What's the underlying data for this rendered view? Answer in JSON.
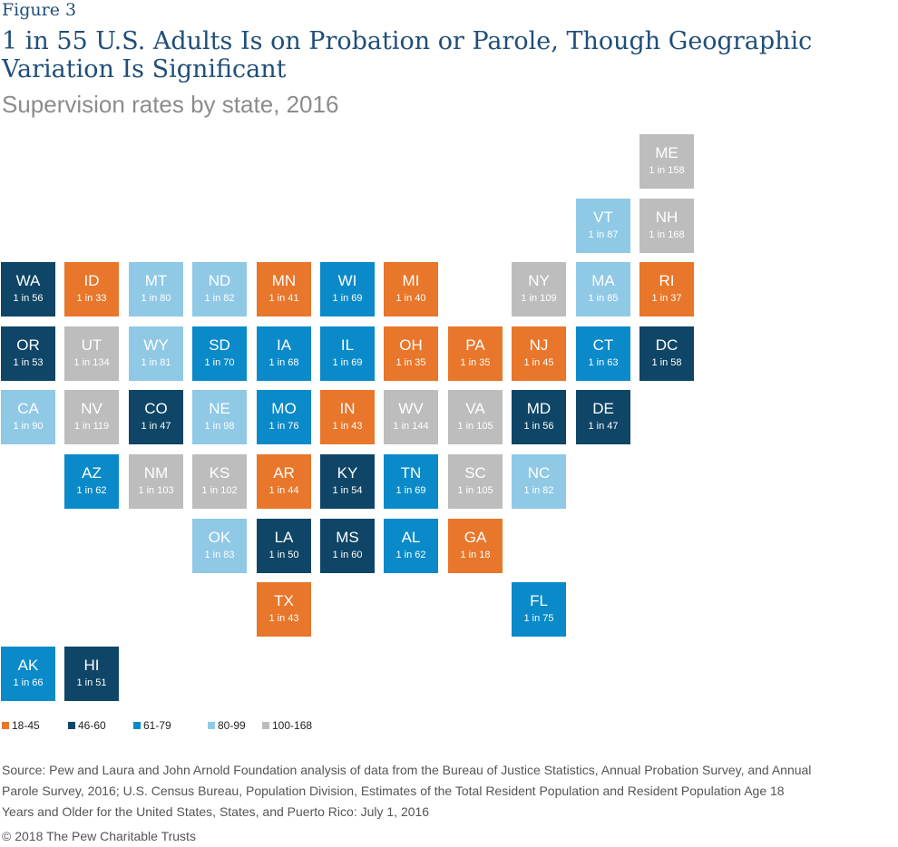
{
  "header": {
    "figure_label": "Figure 3",
    "title": "1 in 55 U.S. Adults Is on Probation or Parole, Though Geographic Variation Is Significant",
    "subtitle": "Supervision rates by state, 2016"
  },
  "colors": {
    "18-45": "#e8762b",
    "46-60": "#0f4566",
    "61-79": "#0a8ac9",
    "80-99": "#8fc9e6",
    "100-168": "#bdbdbd"
  },
  "chart_data": {
    "type": "tile-map",
    "value_label_prefix": "1 in ",
    "states": [
      {
        "abbr": "ME",
        "value": 158,
        "col": 10,
        "row": 0
      },
      {
        "abbr": "VT",
        "value": 87,
        "col": 9,
        "row": 1
      },
      {
        "abbr": "NH",
        "value": 168,
        "col": 10,
        "row": 1
      },
      {
        "abbr": "WA",
        "value": 56,
        "col": 0,
        "row": 2
      },
      {
        "abbr": "ID",
        "value": 33,
        "col": 1,
        "row": 2
      },
      {
        "abbr": "MT",
        "value": 80,
        "col": 2,
        "row": 2
      },
      {
        "abbr": "ND",
        "value": 82,
        "col": 3,
        "row": 2
      },
      {
        "abbr": "MN",
        "value": 41,
        "col": 4,
        "row": 2
      },
      {
        "abbr": "WI",
        "value": 69,
        "col": 5,
        "row": 2
      },
      {
        "abbr": "MI",
        "value": 40,
        "col": 6,
        "row": 2
      },
      {
        "abbr": "NY",
        "value": 109,
        "col": 8,
        "row": 2
      },
      {
        "abbr": "MA",
        "value": 85,
        "col": 9,
        "row": 2
      },
      {
        "abbr": "RI",
        "value": 37,
        "col": 10,
        "row": 2
      },
      {
        "abbr": "OR",
        "value": 53,
        "col": 0,
        "row": 3
      },
      {
        "abbr": "UT",
        "value": 134,
        "col": 1,
        "row": 3
      },
      {
        "abbr": "WY",
        "value": 81,
        "col": 2,
        "row": 3
      },
      {
        "abbr": "SD",
        "value": 70,
        "col": 3,
        "row": 3
      },
      {
        "abbr": "IA",
        "value": 68,
        "col": 4,
        "row": 3
      },
      {
        "abbr": "IL",
        "value": 69,
        "col": 5,
        "row": 3
      },
      {
        "abbr": "OH",
        "value": 35,
        "col": 6,
        "row": 3
      },
      {
        "abbr": "PA",
        "value": 35,
        "col": 7,
        "row": 3
      },
      {
        "abbr": "NJ",
        "value": 45,
        "col": 8,
        "row": 3
      },
      {
        "abbr": "CT",
        "value": 63,
        "col": 9,
        "row": 3
      },
      {
        "abbr": "DC",
        "value": 58,
        "col": 10,
        "row": 3
      },
      {
        "abbr": "CA",
        "value": 90,
        "col": 0,
        "row": 4
      },
      {
        "abbr": "NV",
        "value": 119,
        "col": 1,
        "row": 4
      },
      {
        "abbr": "CO",
        "value": 47,
        "col": 2,
        "row": 4
      },
      {
        "abbr": "NE",
        "value": 98,
        "col": 3,
        "row": 4
      },
      {
        "abbr": "MO",
        "value": 76,
        "col": 4,
        "row": 4
      },
      {
        "abbr": "IN",
        "value": 43,
        "col": 5,
        "row": 4
      },
      {
        "abbr": "WV",
        "value": 144,
        "col": 6,
        "row": 4
      },
      {
        "abbr": "VA",
        "value": 105,
        "col": 7,
        "row": 4
      },
      {
        "abbr": "MD",
        "value": 56,
        "col": 8,
        "row": 4
      },
      {
        "abbr": "DE",
        "value": 47,
        "col": 9,
        "row": 4
      },
      {
        "abbr": "AZ",
        "value": 62,
        "col": 1,
        "row": 5
      },
      {
        "abbr": "NM",
        "value": 103,
        "col": 2,
        "row": 5
      },
      {
        "abbr": "KS",
        "value": 102,
        "col": 3,
        "row": 5
      },
      {
        "abbr": "AR",
        "value": 44,
        "col": 4,
        "row": 5
      },
      {
        "abbr": "KY",
        "value": 54,
        "col": 5,
        "row": 5
      },
      {
        "abbr": "TN",
        "value": 69,
        "col": 6,
        "row": 5
      },
      {
        "abbr": "SC",
        "value": 105,
        "col": 7,
        "row": 5
      },
      {
        "abbr": "NC",
        "value": 82,
        "col": 8,
        "row": 5
      },
      {
        "abbr": "OK",
        "value": 83,
        "col": 3,
        "row": 6
      },
      {
        "abbr": "LA",
        "value": 50,
        "col": 4,
        "row": 6
      },
      {
        "abbr": "MS",
        "value": 60,
        "col": 5,
        "row": 6
      },
      {
        "abbr": "AL",
        "value": 62,
        "col": 6,
        "row": 6
      },
      {
        "abbr": "GA",
        "value": 18,
        "col": 7,
        "row": 6
      },
      {
        "abbr": "TX",
        "value": 43,
        "col": 4,
        "row": 7
      },
      {
        "abbr": "FL",
        "value": 75,
        "col": 8,
        "row": 7
      },
      {
        "abbr": "AK",
        "value": 66,
        "col": 0,
        "row": 8
      },
      {
        "abbr": "HI",
        "value": 51,
        "col": 1,
        "row": 8
      }
    ],
    "legend": [
      {
        "label": "18-45",
        "min": 18,
        "max": 45,
        "color": "#e8762b"
      },
      {
        "label": "46-60",
        "min": 46,
        "max": 60,
        "color": "#0f4566"
      },
      {
        "label": "61-79",
        "min": 61,
        "max": 79,
        "color": "#0a8ac9"
      },
      {
        "label": "80-99",
        "min": 80,
        "max": 99,
        "color": "#8fc9e6"
      },
      {
        "label": "100-168",
        "min": 100,
        "max": 168,
        "color": "#bdbdbd"
      }
    ]
  },
  "footer": {
    "source": "Source: Pew and Laura and John Arnold Foundation analysis of data from the Bureau of Justice Statistics, Annual Probation Survey, and Annual Parole Survey, 2016; U.S. Census Bureau, Population Division, Estimates of the Total Resident Population and Resident Population Age 18 Years and Older for the United States, States, and Puerto Rico: July 1, 2016",
    "copyright": "© 2018 The Pew Charitable Trusts"
  }
}
